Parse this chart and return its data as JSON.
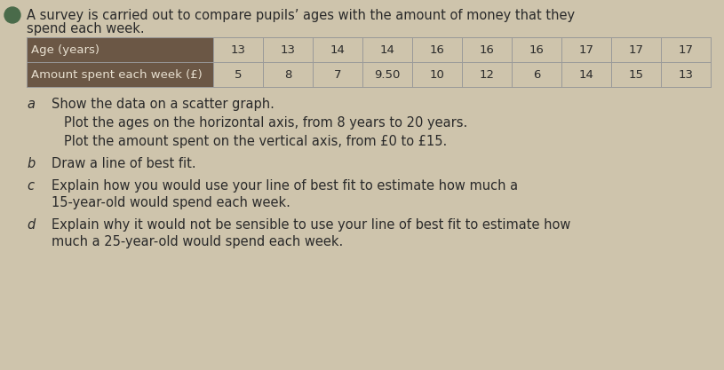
{
  "title_line1": "A survey is carried out to compare pupils’ ages with the amount of money that they",
  "title_line2": "spend each week.",
  "table": {
    "row1_label": "Age (years)",
    "row2_label": "Amount spent each week (£)",
    "ages": [
      13,
      13,
      14,
      14,
      16,
      16,
      16,
      17,
      17,
      17
    ],
    "amounts": [
      5,
      8,
      7,
      9.5,
      10,
      12,
      6,
      14,
      15,
      13
    ]
  },
  "questions": [
    {
      "letter": "a",
      "text": "Show the data on a scatter graph.",
      "sub": true
    },
    {
      "letter": "",
      "text": "Plot the ages on the horizontal axis, from 8 years to 20 years.",
      "sub": false
    },
    {
      "letter": "",
      "text": "Plot the amount spent on the vertical axis, from £0 to £15.",
      "sub": false
    },
    {
      "letter": "b",
      "text": "Draw a line of best fit.",
      "sub": false
    },
    {
      "letter": "c",
      "text": "Explain how you would use your line of best fit to estimate how much a",
      "sub": true,
      "line2": "15-year-old would spend each week."
    },
    {
      "letter": "d",
      "text": "Explain why it would not be sensible to use your line of best fit to estimate how",
      "sub": true,
      "line2": "much a 25-year-old would spend each week."
    }
  ],
  "header_bg_color": "#6b5745",
  "header_text_color": "#e8e0d0",
  "table_line_color": "#999999",
  "background_color": "#cec4ac",
  "text_color": "#2a2a2a",
  "letter_color": "#2a2a2a",
  "font_size_title": 10.5,
  "font_size_table": 9.5,
  "font_size_questions": 10.5,
  "circle_color": "#4a6b4a"
}
